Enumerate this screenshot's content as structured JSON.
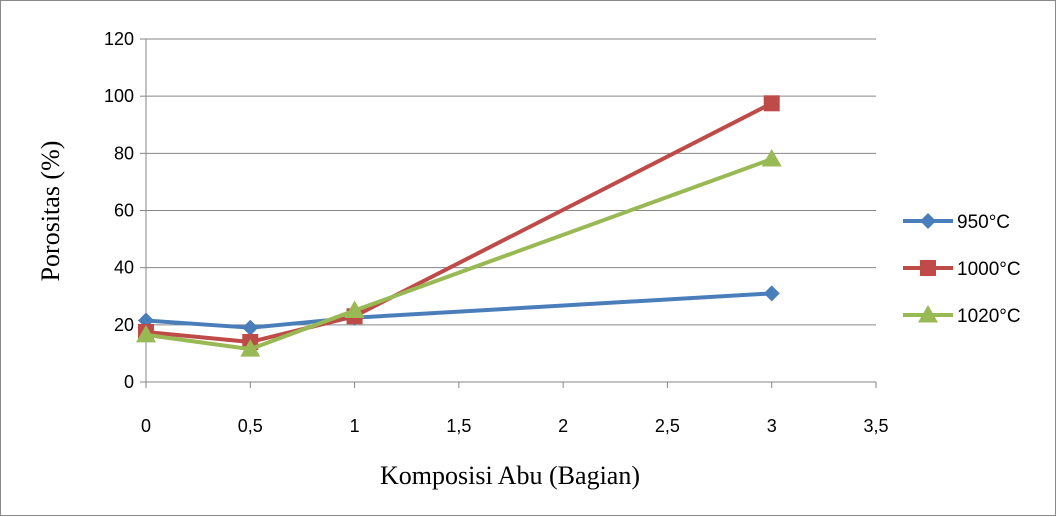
{
  "chart_data": {
    "type": "line",
    "title": "",
    "xlabel": "Komposisi Abu (Bagian)",
    "ylabel": "Porositas (%)",
    "xlim": [
      0,
      3.5
    ],
    "ylim": [
      0,
      120
    ],
    "xticks": [
      0,
      0.5,
      1,
      1.5,
      2,
      2.5,
      3,
      3.5
    ],
    "xtick_labels": [
      "0",
      "0,5",
      "1",
      "1,5",
      "2",
      "2,5",
      "3",
      "3,5"
    ],
    "yticks": [
      0,
      20,
      40,
      60,
      80,
      100,
      120
    ],
    "ytick_labels": [
      "0",
      "20",
      "40",
      "60",
      "80",
      "100",
      "120"
    ],
    "grid": "horizontal",
    "legend_position": "right",
    "series": [
      {
        "name": "950°C",
        "color": "#4a7ebb",
        "marker": "diamond",
        "x": [
          0,
          0.5,
          1,
          3
        ],
        "y": [
          21.5,
          19,
          22.5,
          31
        ]
      },
      {
        "name": "1000°C",
        "color": "#be4b48",
        "marker": "square",
        "x": [
          0,
          0.5,
          1,
          3
        ],
        "y": [
          17.5,
          14,
          23,
          97.5
        ]
      },
      {
        "name": "1020°C",
        "color": "#98b954",
        "marker": "triangle",
        "x": [
          0,
          0.5,
          1,
          3
        ],
        "y": [
          16.5,
          11.5,
          25,
          78
        ]
      }
    ]
  }
}
